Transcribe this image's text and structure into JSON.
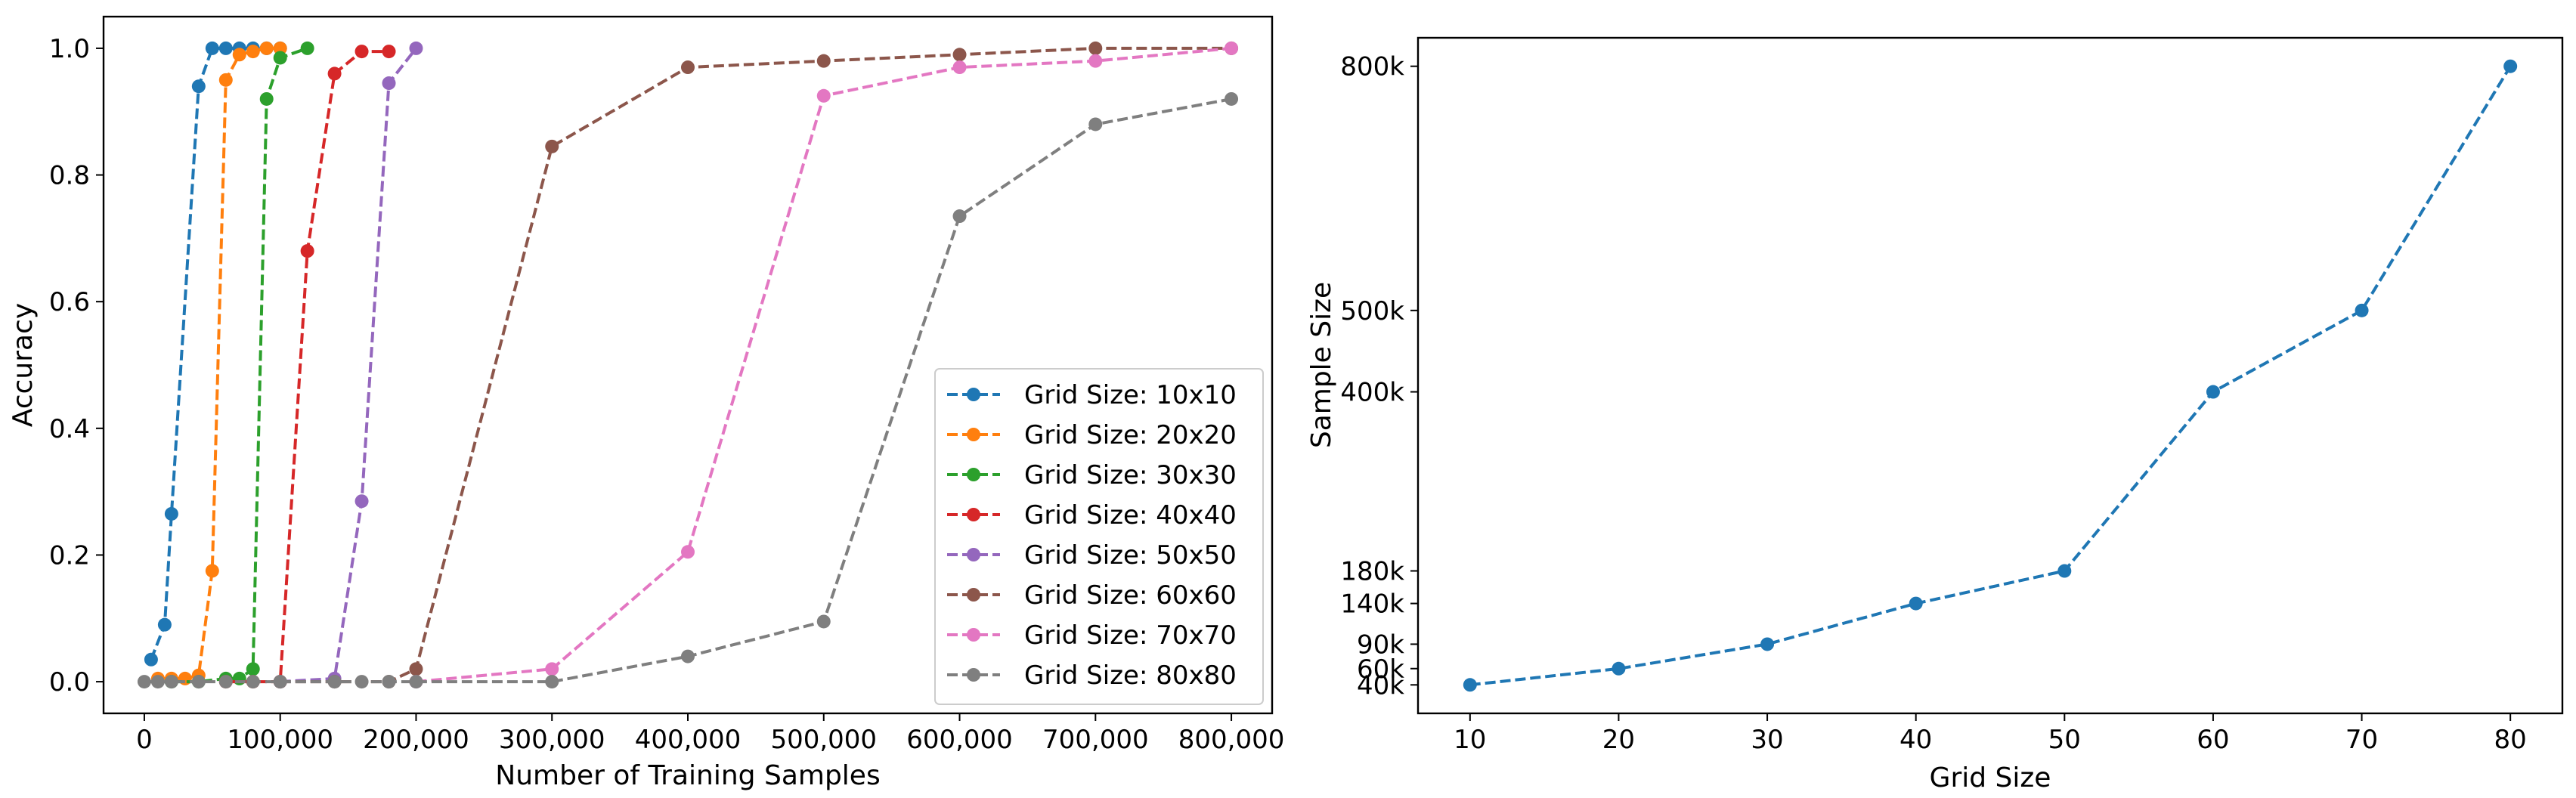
{
  "chart_data": [
    {
      "type": "line",
      "title": "",
      "xlabel": "Number of Training Samples",
      "ylabel": "Accuracy",
      "xlim": [
        -30000,
        830000
      ],
      "ylim": [
        -0.05,
        1.05
      ],
      "xticks": [
        0,
        100000,
        200000,
        300000,
        400000,
        500000,
        600000,
        700000,
        800000
      ],
      "xtick_labels": [
        "0",
        "100,000",
        "200,000",
        "300,000",
        "400,000",
        "500,000",
        "600,000",
        "700,000",
        "800,000"
      ],
      "yticks": [
        0.0,
        0.2,
        0.4,
        0.6,
        0.8,
        1.0
      ],
      "ytick_labels": [
        "0.0",
        "0.2",
        "0.4",
        "0.6",
        "0.8",
        "1.0"
      ],
      "grid": false,
      "legend": "lower-right",
      "series": [
        {
          "name": "Grid Size: 10x10",
          "color": "#1f77b4",
          "x": [
            5000,
            15000,
            20000,
            40000,
            50000,
            60000,
            70000,
            80000,
            90000,
            100000
          ],
          "y": [
            0.035,
            0.09,
            0.265,
            0.94,
            1.0,
            1.0,
            1.0,
            1.0,
            1.0,
            1.0
          ]
        },
        {
          "name": "Grid Size: 20x20",
          "color": "#ff7f0e",
          "x": [
            10000,
            20000,
            30000,
            40000,
            50000,
            60000,
            70000,
            80000,
            90000,
            100000
          ],
          "y": [
            0.005,
            0.005,
            0.005,
            0.01,
            0.175,
            0.95,
            0.99,
            0.995,
            1.0,
            1.0
          ]
        },
        {
          "name": "Grid Size: 30x30",
          "color": "#2ca02c",
          "x": [
            20000,
            40000,
            60000,
            70000,
            80000,
            90000,
            100000,
            120000
          ],
          "y": [
            0.0,
            0.0,
            0.005,
            0.005,
            0.02,
            0.92,
            0.985,
            1.0
          ]
        },
        {
          "name": "Grid Size: 40x40",
          "color": "#d62728",
          "x": [
            60000,
            80000,
            100000,
            120000,
            140000,
            160000,
            180000
          ],
          "y": [
            0.0,
            0.0,
            0.0,
            0.68,
            0.96,
            0.995,
            0.995
          ]
        },
        {
          "name": "Grid Size: 50x50",
          "color": "#9467bd",
          "x": [
            100000,
            140000,
            160000,
            180000,
            200000
          ],
          "y": [
            0.0,
            0.005,
            0.285,
            0.945,
            1.0
          ]
        },
        {
          "name": "Grid Size: 60x60",
          "color": "#8c564b",
          "x": [
            100000,
            140000,
            180000,
            200000,
            300000,
            400000,
            500000,
            600000,
            700000,
            800000
          ],
          "y": [
            0.0,
            0.0,
            0.0,
            0.02,
            0.845,
            0.97,
            0.98,
            0.99,
            1.0,
            1.0
          ]
        },
        {
          "name": "Grid Size: 70x70",
          "color": "#e377c2",
          "x": [
            200000,
            300000,
            400000,
            500000,
            600000,
            700000,
            800000
          ],
          "y": [
            0.0,
            0.02,
            0.205,
            0.925,
            0.97,
            0.98,
            1.0
          ]
        },
        {
          "name": "Grid Size: 80x80",
          "color": "#7f7f7f",
          "x": [
            0,
            10000,
            20000,
            40000,
            60000,
            80000,
            100000,
            140000,
            160000,
            180000,
            200000,
            300000,
            400000,
            500000,
            600000,
            700000,
            800000
          ],
          "y": [
            0.0,
            0.0,
            0.0,
            0.0,
            0.0,
            0.0,
            0.0,
            0.0,
            0.0,
            0.0,
            0.0,
            0.0,
            0.04,
            0.095,
            0.735,
            0.88,
            0.92
          ]
        }
      ]
    },
    {
      "type": "line",
      "title": "",
      "xlabel": "Grid Size",
      "ylabel": "Sample Size",
      "xlim": [
        6.5,
        83.5
      ],
      "ylim": [
        5000,
        835000
      ],
      "xticks": [
        10,
        20,
        30,
        40,
        50,
        60,
        70,
        80
      ],
      "xtick_labels": [
        "10",
        "20",
        "30",
        "40",
        "50",
        "60",
        "70",
        "80"
      ],
      "yticks": [
        40000,
        60000,
        90000,
        140000,
        180000,
        400000,
        500000,
        800000
      ],
      "ytick_labels": [
        "40k",
        "60k",
        "90k",
        "140k",
        "180k",
        "400k",
        "500k",
        "800k"
      ],
      "grid": false,
      "series": [
        {
          "name": "Sample Size",
          "color": "#1f77b4",
          "x": [
            10,
            20,
            30,
            40,
            50,
            60,
            70,
            80
          ],
          "y": [
            40000,
            60000,
            90000,
            140000,
            180000,
            400000,
            500000,
            800000
          ]
        }
      ]
    }
  ]
}
